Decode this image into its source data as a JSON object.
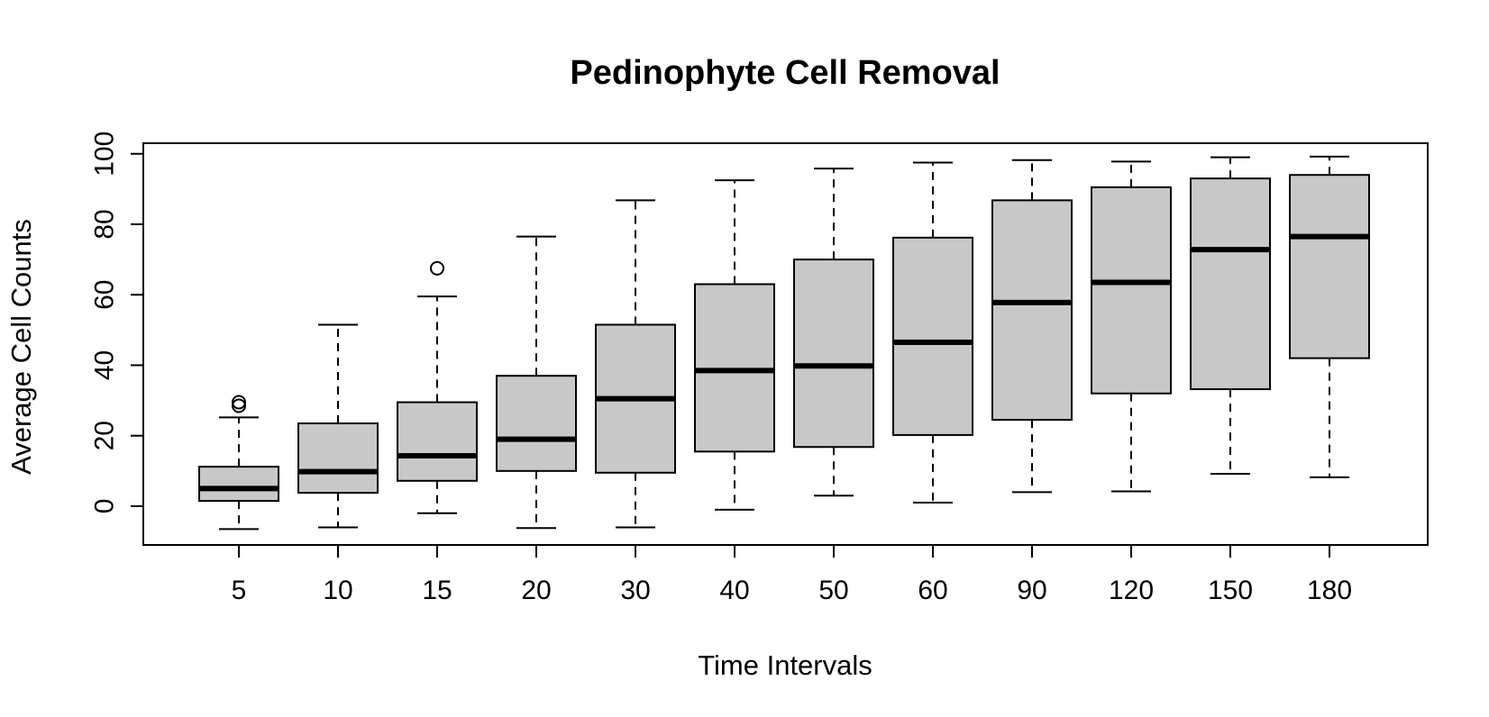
{
  "chart_data": {
    "type": "boxplot",
    "title": "Pedinophyte Cell Removal",
    "xlabel": "Time Intervals",
    "ylabel": "Average Cell Counts",
    "ylim": [
      -11,
      103
    ],
    "yticks": [
      0,
      20,
      40,
      60,
      80,
      100
    ],
    "categories": [
      "5",
      "10",
      "15",
      "20",
      "30",
      "40",
      "50",
      "60",
      "90",
      "120",
      "150",
      "180"
    ],
    "boxes": [
      {
        "category": "5",
        "whisker_low": -6.5,
        "q1": 1.5,
        "median": 5.0,
        "q3": 11.2,
        "whisker_high": 25.2,
        "outliers": [
          28.5,
          29.5
        ]
      },
      {
        "category": "10",
        "whisker_low": -6.0,
        "q1": 3.8,
        "median": 9.8,
        "q3": 23.5,
        "whisker_high": 51.5,
        "outliers": []
      },
      {
        "category": "15",
        "whisker_low": -2.0,
        "q1": 7.2,
        "median": 14.3,
        "q3": 29.5,
        "whisker_high": 59.5,
        "outliers": [
          67.5
        ]
      },
      {
        "category": "20",
        "whisker_low": -6.2,
        "q1": 10.0,
        "median": 19.0,
        "q3": 37.0,
        "whisker_high": 76.5,
        "outliers": []
      },
      {
        "category": "30",
        "whisker_low": -6.0,
        "q1": 9.5,
        "median": 30.5,
        "q3": 51.5,
        "whisker_high": 86.8,
        "outliers": []
      },
      {
        "category": "40",
        "whisker_low": -1.0,
        "q1": 15.5,
        "median": 38.5,
        "q3": 63.0,
        "whisker_high": 92.5,
        "outliers": []
      },
      {
        "category": "50",
        "whisker_low": 3.0,
        "q1": 16.8,
        "median": 39.8,
        "q3": 70.0,
        "whisker_high": 95.8,
        "outliers": []
      },
      {
        "category": "60",
        "whisker_low": 1.0,
        "q1": 20.2,
        "median": 46.5,
        "q3": 76.2,
        "whisker_high": 97.5,
        "outliers": []
      },
      {
        "category": "90",
        "whisker_low": 4.0,
        "q1": 24.5,
        "median": 57.8,
        "q3": 86.8,
        "whisker_high": 98.2,
        "outliers": []
      },
      {
        "category": "120",
        "whisker_low": 4.2,
        "q1": 32.0,
        "median": 63.5,
        "q3": 90.5,
        "whisker_high": 97.8,
        "outliers": []
      },
      {
        "category": "150",
        "whisker_low": 9.2,
        "q1": 33.2,
        "median": 72.8,
        "q3": 93.0,
        "whisker_high": 99.0,
        "outliers": []
      },
      {
        "category": "180",
        "whisker_low": 8.2,
        "q1": 42.0,
        "median": 76.5,
        "q3": 94.0,
        "whisker_high": 99.2,
        "outliers": []
      }
    ],
    "box_fill": "#c8c8c8",
    "line_color": "#000000",
    "grid": false
  }
}
